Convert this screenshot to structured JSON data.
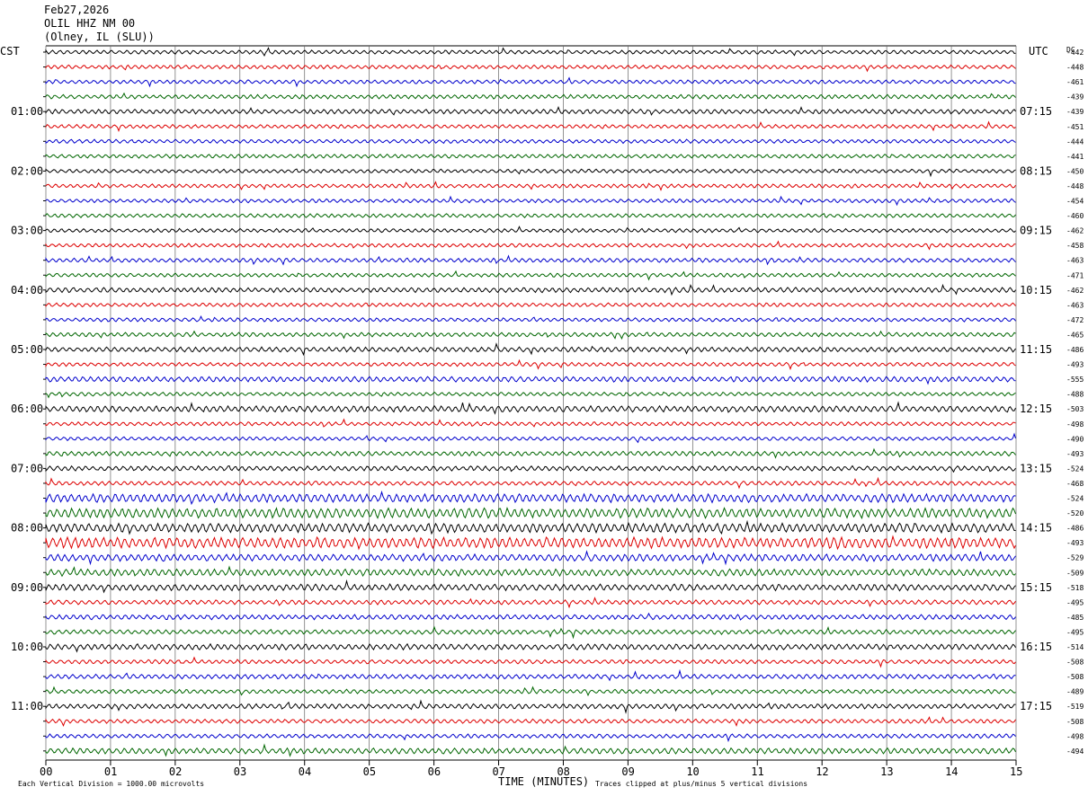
{
  "header": {
    "date": "Feb27,2026",
    "station": "OLIL HHZ NM 00",
    "location": "(Olney, IL (SLU))"
  },
  "left_zone": "CST",
  "right_zone": "UTC",
  "dc_label": "DC",
  "footer": {
    "xlabel": "TIME (MINUTES)",
    "scale_note": "Each Vertical Division = 1000.00 microvolts",
    "clip_note": "Traces clipped at plus/minus 5 vertical divisions"
  },
  "colors": {
    "trace_cycle": [
      "#000000",
      "#dd0000",
      "#0000cc",
      "#006600"
    ],
    "grid": "#666666"
  },
  "chart_data": {
    "type": "line",
    "title": "OLIL HHZ NM 00",
    "xlabel": "TIME (MINUTES)",
    "xlim": [
      0,
      15
    ],
    "x_ticks": [
      "00",
      "01",
      "02",
      "03",
      "04",
      "05",
      "06",
      "07",
      "08",
      "09",
      "10",
      "11",
      "12",
      "13",
      "14",
      "15"
    ],
    "left_hour_labels": [
      "01:00",
      "02:00",
      "03:00",
      "04:00",
      "05:00",
      "06:00",
      "07:00",
      "08:00",
      "09:00",
      "10:00",
      "11:00"
    ],
    "right_hour_labels": [
      "07:15",
      "08:15",
      "09:15",
      "10:15",
      "11:15",
      "12:15",
      "13:15",
      "14:15",
      "15:15",
      "16:15",
      "17:15"
    ],
    "trace_dc_offsets": [
      -442,
      -448,
      -461,
      -439,
      -439,
      -451,
      -444,
      -441,
      -450,
      -448,
      -454,
      -460,
      -462,
      -458,
      -463,
      -471,
      -462,
      -463,
      -472,
      -465,
      -486,
      -493,
      -555,
      -488,
      -503,
      -498,
      -490,
      -493,
      -524,
      -468,
      -524,
      -520,
      -486,
      -493,
      -529,
      -509,
      -518,
      -495,
      -485,
      -495,
      -514,
      -508,
      -508,
      -489,
      -519,
      -508,
      -498,
      -494
    ],
    "trace_activity": [
      1.0,
      1.0,
      1.0,
      1.1,
      1.2,
      1.0,
      1.0,
      1.0,
      1.0,
      1.0,
      1.0,
      1.0,
      1.0,
      1.0,
      1.1,
      1.0,
      1.3,
      1.0,
      1.0,
      1.1,
      1.3,
      1.0,
      1.4,
      1.0,
      1.6,
      1.0,
      1.0,
      1.2,
      1.3,
      1.1,
      2.2,
      2.6,
      2.4,
      2.8,
      1.8,
      1.8,
      1.7,
      1.2,
      1.3,
      1.2,
      1.5,
      1.1,
      1.2,
      1.1,
      1.3,
      1.1,
      1.1,
      1.5
    ],
    "grid": true
  }
}
